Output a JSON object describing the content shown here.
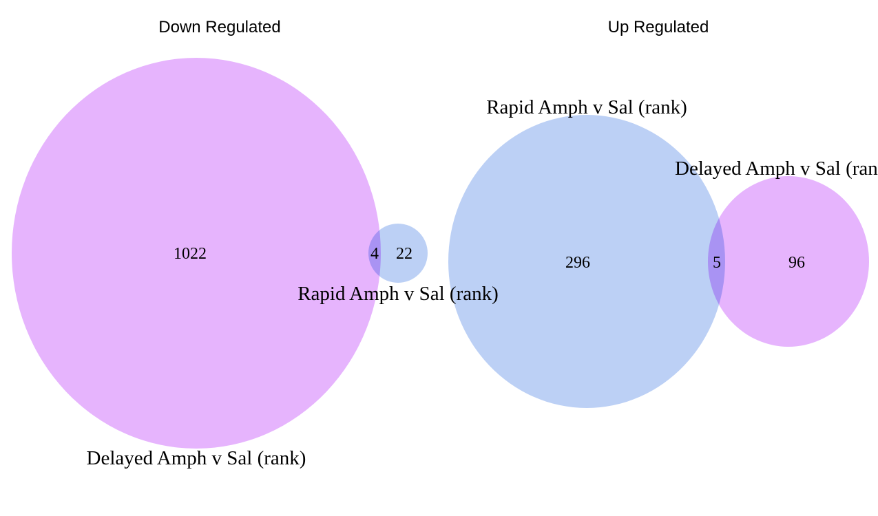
{
  "colors": {
    "delayed": "#d98cfc",
    "rapid": "#98b7f0"
  },
  "panels": [
    {
      "title": "Down Regulated",
      "sets": [
        {
          "id": "delayed",
          "label": "Delayed Amph v Sal (rank)",
          "only_count": "1022"
        },
        {
          "id": "rapid",
          "label": "Rapid Amph v Sal (rank)",
          "only_count": "22"
        }
      ],
      "overlap_count": "4"
    },
    {
      "title": "Up Regulated",
      "sets": [
        {
          "id": "rapid",
          "label": "Rapid Amph v Sal (rank)",
          "only_count": "296"
        },
        {
          "id": "delayed",
          "label": "Delayed Amph v Sal (rank)",
          "only_count": "96"
        }
      ],
      "overlap_count": "5"
    }
  ]
}
